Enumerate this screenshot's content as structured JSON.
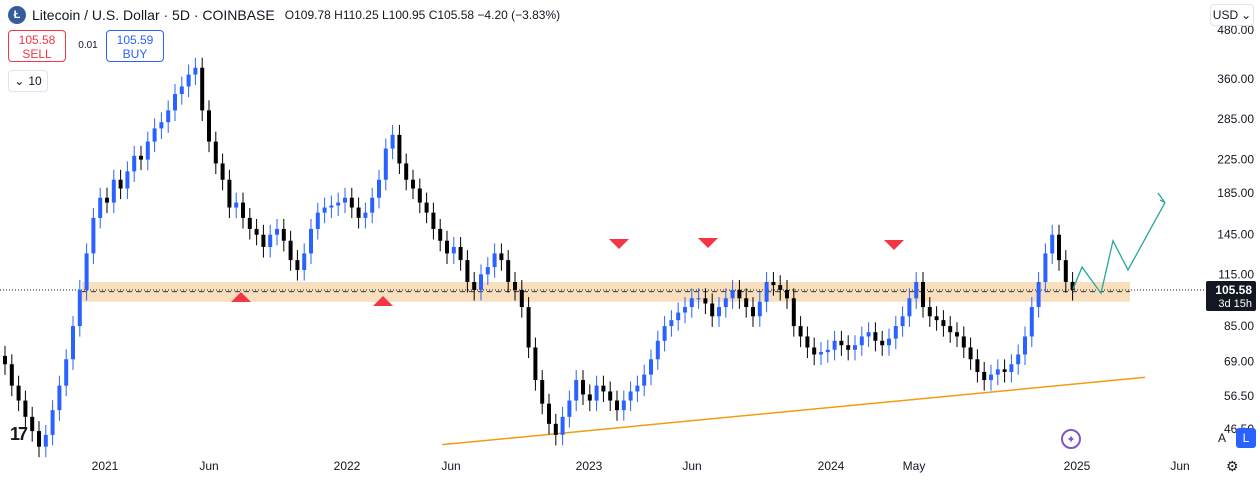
{
  "header": {
    "icon": "litecoin-icon",
    "title": "Litecoin / U.S. Dollar · 5D · COINBASE",
    "o_label": "O",
    "o_val": "109.78",
    "h_label": "H",
    "h_val": "110.25",
    "l_label": "L",
    "l_val": "100.95",
    "c_label": "C",
    "c_val": "105.58",
    "change": "−4.20 (−3.83%)"
  },
  "trade": {
    "sell_price": "105.58",
    "sell_label": "SELL",
    "spread": "0.01",
    "buy_price": "105.59",
    "buy_label": "BUY"
  },
  "indicators_toggle": {
    "count": "10"
  },
  "currency": {
    "label": "USD"
  },
  "scale_buttons": {
    "auto": "A",
    "log": "L"
  },
  "colors": {
    "up": "#2962ff",
    "down": "#000000",
    "zone": "#f7d9b1",
    "trendline": "#f39c12",
    "arrow": "#f23645",
    "projection": "#26a69a",
    "grid": "#ffffff"
  },
  "chart_data": {
    "type": "candlestick",
    "symbol": "LTCUSD",
    "interval": "5D",
    "scale": "log",
    "ylim": [
      40,
      480
    ],
    "y_ticks": [
      "480.00",
      "360.00",
      "285.00",
      "225.00",
      "185.00",
      "145.00",
      "115.00",
      "85.00",
      "69.00",
      "56.50",
      "46.50"
    ],
    "x_ticks": [
      "2021",
      "Jun",
      "2022",
      "Jun",
      "2023",
      "Jun",
      "2024",
      "May",
      "2025",
      "Jun"
    ],
    "price_label": {
      "price": "105.58",
      "countdown": "3d 15h"
    },
    "closes": [
      68,
      60,
      55,
      50,
      46,
      42,
      45,
      52,
      60,
      70,
      85,
      105,
      130,
      160,
      180,
      175,
      200,
      190,
      210,
      230,
      225,
      250,
      270,
      280,
      300,
      330,
      345,
      370,
      385,
      300,
      250,
      220,
      200,
      170,
      175,
      160,
      150,
      145,
      135,
      145,
      150,
      140,
      125,
      118,
      130,
      150,
      165,
      170,
      172,
      175,
      180,
      170,
      160,
      165,
      180,
      200,
      240,
      260,
      220,
      200,
      190,
      175,
      165,
      150,
      140,
      130,
      135,
      125,
      110,
      105,
      115,
      120,
      130,
      125,
      110,
      105,
      95,
      75,
      62,
      54,
      48,
      45,
      50,
      55,
      62,
      57,
      55,
      60,
      58,
      55,
      52,
      55,
      58,
      60,
      64,
      70,
      78,
      85,
      88,
      92,
      95,
      100,
      100,
      97,
      90,
      95,
      100,
      105,
      100,
      95,
      90,
      98,
      110,
      108,
      105,
      100,
      85,
      80,
      75,
      72,
      73,
      74,
      78,
      76,
      74,
      76,
      80,
      82,
      78,
      76,
      79,
      85,
      90,
      100,
      110,
      95,
      90,
      88,
      85,
      82,
      80,
      75,
      70,
      65,
      62,
      64,
      66,
      65,
      68,
      72,
      80,
      95,
      110,
      130,
      145,
      125,
      110,
      105
    ],
    "support_zone": [
      98,
      110
    ],
    "support_level": 104,
    "trendline": {
      "start": {
        "index": 79,
        "price": 42.5
      },
      "end": {
        "index": 170,
        "price": 63
      }
    },
    "resistance_arrows": [
      "Feb 2023",
      "Jul 2023",
      "Mar 2024"
    ],
    "support_arrows": [
      "Jul 2021",
      "Feb 2022"
    ],
    "projection": [
      105.58,
      120,
      103,
      140,
      118,
      175
    ]
  }
}
